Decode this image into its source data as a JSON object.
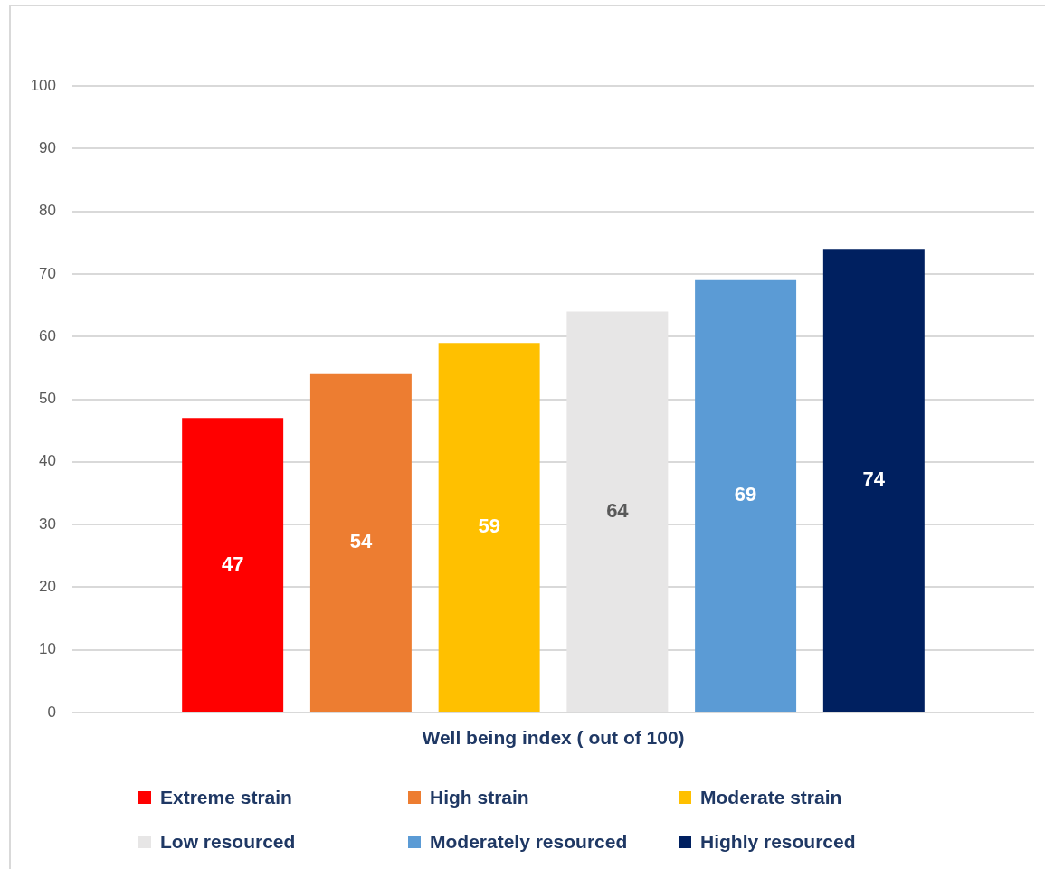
{
  "chart_data": {
    "type": "bar",
    "categories": [
      "Well being index ( out of 100)"
    ],
    "series": [
      {
        "name": "Extreme strain",
        "color": "#ff0000",
        "values": [
          47
        ]
      },
      {
        "name": "High strain",
        "color": "#ed7d31",
        "values": [
          54
        ]
      },
      {
        "name": "Moderate strain",
        "color": "#ffc000",
        "values": [
          59
        ]
      },
      {
        "name": "Low resourced",
        "color": "#e7e6e6",
        "values": [
          64
        ]
      },
      {
        "name": "Moderately resourced",
        "color": "#5b9bd5",
        "values": [
          69
        ]
      },
      {
        "name": "Highly resourced",
        "color": "#002060",
        "values": [
          74
        ]
      }
    ],
    "ylim": [
      0,
      100
    ],
    "yticks": [
      0,
      10,
      20,
      30,
      40,
      50,
      60,
      70,
      80,
      90,
      100
    ],
    "grid": "y",
    "data_labels": true,
    "legend": "bottom"
  }
}
